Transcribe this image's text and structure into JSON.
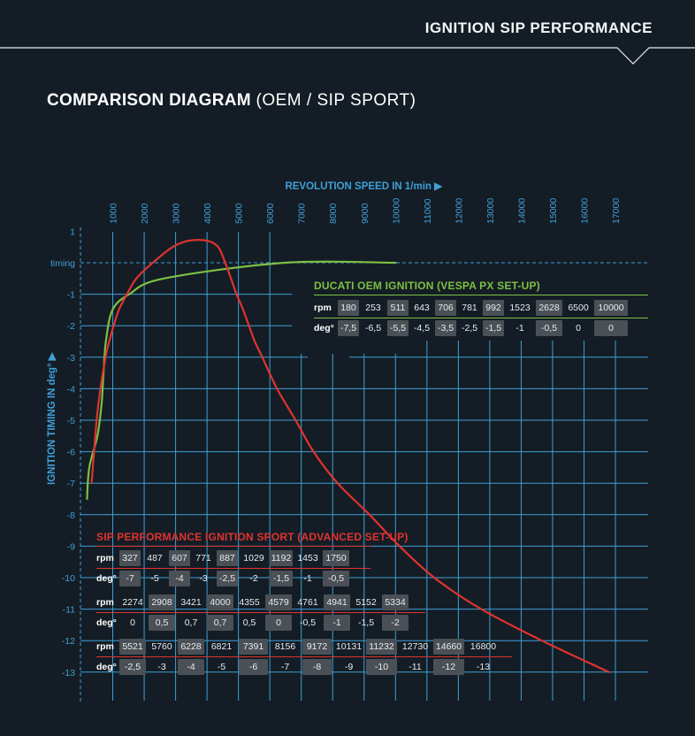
{
  "header": {
    "title": "IGNITION SIP PERFORMANCE"
  },
  "page_title": {
    "main": "COMPARISON DIAGRAM",
    "sub": "(OEM / SIP SPORT)"
  },
  "chart_data": {
    "type": "line",
    "title": "COMPARISON DIAGRAM (OEM / SIP SPORT)",
    "xlabel": "REVOLUTION SPEED IN 1/min ▶",
    "ylabel": "IGNITION TIMING IN deg° ▶",
    "xlim": [
      0,
      17000
    ],
    "ylim": [
      -13,
      1
    ],
    "x_ticks": [
      1000,
      2000,
      3000,
      4000,
      5000,
      6000,
      7000,
      8000,
      9000,
      10000,
      11000,
      12000,
      13000,
      14000,
      15000,
      16000,
      17000
    ],
    "y_ticks": [
      "1",
      "timing",
      "-1",
      "-2",
      "-3",
      "-4",
      "-5",
      "-6",
      "-7",
      "-8",
      "-9",
      "-10",
      "-11",
      "-12",
      "-13"
    ],
    "reference_line": {
      "label": "timing",
      "y": 0
    },
    "series": [
      {
        "name": "DUCATI OEM IGNITION (VESPA PX SET-UP)",
        "color": "#7dc043",
        "x": [
          180,
          253,
          511,
          643,
          706,
          781,
          992,
          1523,
          2628,
          6500,
          10000
        ],
        "y": [
          -7.5,
          -6.5,
          -5.5,
          -4.5,
          -3.5,
          -2.5,
          -1.5,
          -1,
          -0.5,
          0,
          0
        ]
      },
      {
        "name": "SIP PERFORMANCE IGNITION SPORT (ADVANCED SET-UP)",
        "color": "#e0332f",
        "x": [
          327,
          487,
          607,
          771,
          887,
          1029,
          1192,
          1453,
          1750,
          2274,
          2908,
          3421,
          4000,
          4355,
          4579,
          4761,
          4941,
          5152,
          5334,
          5521,
          5760,
          6228,
          6821,
          7391,
          8156,
          9172,
          10131,
          11232,
          12730,
          14660,
          16800
        ],
        "y": [
          -7,
          -5,
          -4,
          -3,
          -2.5,
          -2,
          -1.5,
          -1,
          -0.5,
          0,
          0.5,
          0.7,
          0.7,
          0.5,
          0,
          -0.5,
          -1,
          -1.5,
          -2,
          -2.5,
          -3,
          -4,
          -5,
          -6,
          -7,
          -8,
          -9,
          -10,
          -11,
          -12,
          -13
        ]
      }
    ]
  },
  "oem_table": {
    "title": "DUCATI OEM IGNITION (VESPA PX SET-UP)",
    "rpm_label": "rpm",
    "deg_label": "deg°",
    "rpm": [
      "180",
      "253",
      "511",
      "643",
      "706",
      "781",
      "992",
      "1523",
      "2628",
      "6500",
      "10000"
    ],
    "deg": [
      "-7,5",
      "-6,5",
      "-5,5",
      "-4,5",
      "-3,5",
      "-2,5",
      "-1,5",
      "-1",
      "-0,5",
      "0",
      "0"
    ]
  },
  "sip_table": {
    "title": "SIP PERFORMANCE IGNITION SPORT (ADVANCED SET-UP)",
    "rpm_label": "rpm",
    "deg_label": "deg°",
    "block1": {
      "rpm": [
        "327",
        "487",
        "607",
        "771",
        "887",
        "1029",
        "1192",
        "1453",
        "1750"
      ],
      "deg": [
        "-7",
        "-5",
        "-4",
        "-3",
        "-2,5",
        "-2",
        "-1,5",
        "-1",
        "-0,5"
      ]
    },
    "block2": {
      "rpm": [
        "2274",
        "2908",
        "3421",
        "4000",
        "4355",
        "4579",
        "4761",
        "4941",
        "5152",
        "5334"
      ],
      "deg": [
        "0",
        "0,5",
        "0,7",
        "0,7",
        "0,5",
        "0",
        "-0,5",
        "-1",
        "-1,5",
        "-2"
      ]
    },
    "block3": {
      "rpm": [
        "5521",
        "5760",
        "6228",
        "6821",
        "7391",
        "8156",
        "9172",
        "10131",
        "11232",
        "12730",
        "14660",
        "16800"
      ],
      "deg": [
        "-2,5",
        "-3",
        "-4",
        "-5",
        "-6",
        "-7",
        "-8",
        "-9",
        "-10",
        "-11",
        "-12",
        "-13"
      ]
    }
  }
}
